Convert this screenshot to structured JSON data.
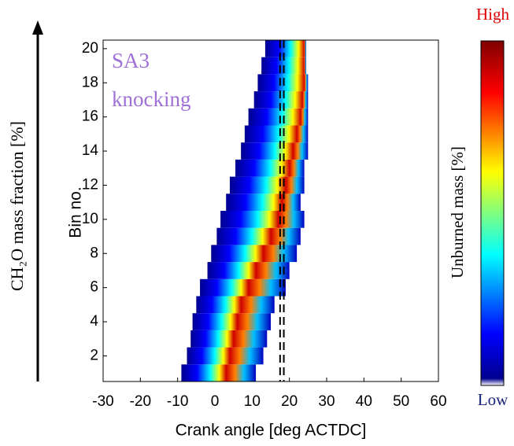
{
  "chart_data": {
    "type": "heatmap",
    "annotations": [
      "SA3",
      "knocking"
    ],
    "xlabel": "Crank angle [deg ACTDC]",
    "ylabel": "Bin no.",
    "outer_ylabel": "CH₂O mass fraction [%]",
    "colorbar_label": "Unburned mass [%]",
    "colorbar_high": "High",
    "colorbar_low": "Low",
    "xlim": [
      -30,
      60
    ],
    "xticks": [
      -30,
      -20,
      -10,
      0,
      10,
      20,
      30,
      40,
      50,
      60
    ],
    "ylim": [
      0.5,
      20.5
    ],
    "yticks": [
      2,
      4,
      6,
      8,
      10,
      12,
      14,
      16,
      18,
      20
    ],
    "bins": [
      1,
      2,
      3,
      4,
      5,
      6,
      7,
      8,
      9,
      10,
      11,
      12,
      13,
      14,
      15,
      16,
      17,
      18,
      19,
      20
    ],
    "start": [
      -9,
      -7.5,
      -6.5,
      -6,
      -5,
      -4,
      -2,
      -1,
      0.5,
      1.5,
      3,
      4,
      5.5,
      7,
      8,
      9,
      10.5,
      11.5,
      12.5,
      13.5
    ],
    "peak": [
      3,
      4,
      5,
      6,
      7,
      9,
      11,
      13,
      15,
      17,
      18,
      19,
      20,
      21,
      22,
      23,
      23.5,
      24,
      24,
      24
    ],
    "end": [
      11,
      13,
      14,
      15,
      16,
      19,
      20,
      22,
      23,
      24,
      23,
      24,
      24,
      25,
      25,
      25,
      25,
      25,
      24.5,
      24.5
    ],
    "dashed_lines": [
      17.5,
      18.5
    ]
  }
}
